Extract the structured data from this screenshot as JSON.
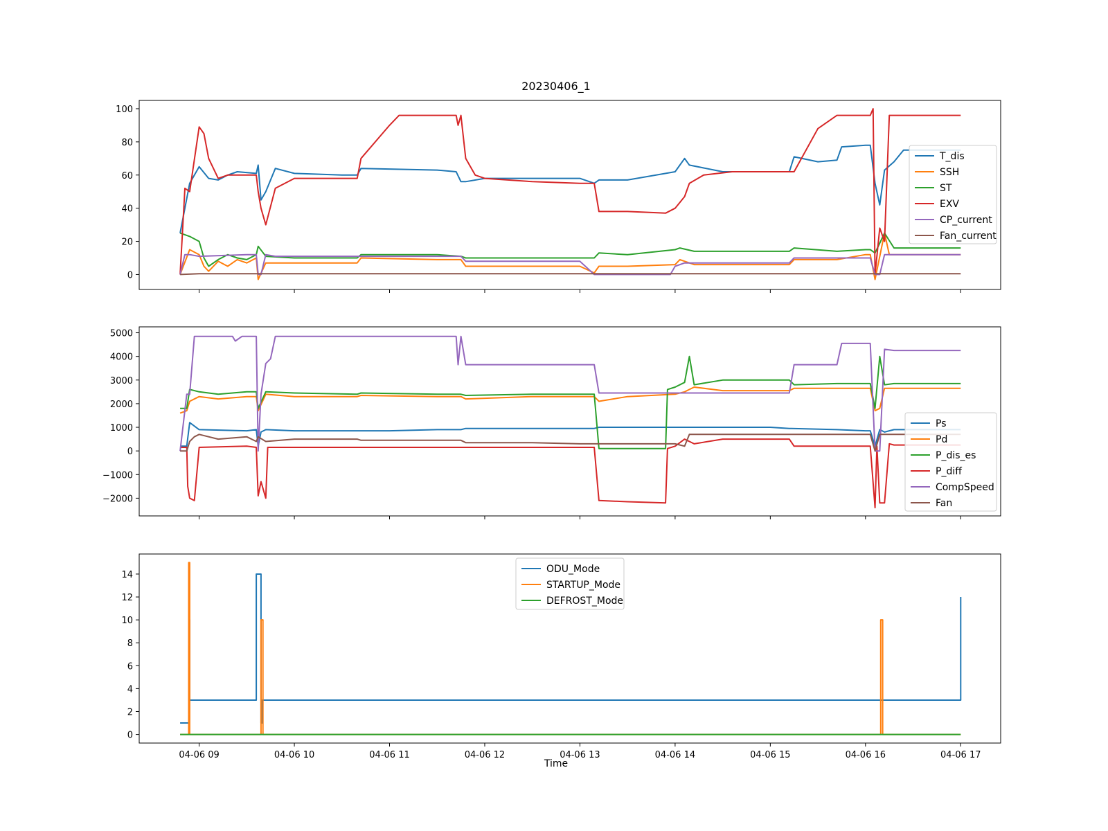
{
  "figure_title": "20230406_1",
  "xlabel": "Time",
  "x_tick_labels": [
    "04-06 09",
    "04-06 10",
    "04-06 11",
    "04-06 12",
    "04-06 13",
    "04-06 14",
    "04-06 15",
    "04-06 16",
    "04-06 17"
  ],
  "colors": {
    "blue": "#1f77b4",
    "orange": "#ff7f0e",
    "green": "#2ca02c",
    "red": "#d62728",
    "purple": "#9467bd",
    "brown": "#8c564b"
  },
  "chart_data": [
    {
      "type": "line",
      "title": "20230406_1",
      "x_unit": "hour of day on 04-06",
      "xlim": [
        8.37,
        17.42
      ],
      "ylim": [
        -9,
        105
      ],
      "yticks": [
        0,
        20,
        40,
        60,
        80,
        100
      ],
      "legend_position": "center-right",
      "series": [
        {
          "name": "T_dis",
          "color": "#1f77b4",
          "x": [
            8.8,
            8.9,
            9.0,
            9.1,
            9.2,
            9.3,
            9.4,
            9.6,
            9.62,
            9.65,
            9.7,
            9.8,
            10.0,
            10.5,
            10.66,
            10.7,
            11.5,
            11.7,
            11.75,
            11.8,
            12.0,
            12.5,
            13.0,
            13.15,
            13.2,
            13.5,
            14.0,
            14.1,
            14.15,
            14.5,
            15.0,
            15.2,
            15.25,
            15.5,
            15.7,
            15.75,
            16.0,
            16.05,
            16.1,
            16.15,
            16.2,
            16.3,
            16.4,
            17.0
          ],
          "y": [
            25,
            55,
            65,
            58,
            57,
            60,
            62,
            61,
            66,
            45,
            50,
            64,
            61,
            60,
            60,
            64,
            63,
            62,
            56,
            56,
            58,
            58,
            58,
            55,
            57,
            57,
            62,
            70,
            66,
            62,
            62,
            62,
            71,
            68,
            69,
            77,
            78,
            78,
            55,
            42,
            63,
            68,
            75,
            75
          ]
        },
        {
          "name": "SSH",
          "color": "#ff7f0e",
          "x": [
            8.8,
            8.9,
            9.0,
            9.05,
            9.1,
            9.2,
            9.3,
            9.4,
            9.5,
            9.6,
            9.62,
            9.7,
            10.0,
            10.66,
            10.7,
            11.5,
            11.75,
            11.8,
            12.5,
            13.0,
            13.15,
            13.2,
            13.5,
            14.0,
            14.05,
            14.2,
            14.5,
            15.0,
            15.2,
            15.25,
            15.7,
            16.0,
            16.05,
            16.1,
            16.2,
            16.25,
            16.3,
            17.0
          ],
          "y": [
            0,
            15,
            12,
            5,
            2,
            8,
            5,
            9,
            7,
            10,
            -3,
            7,
            7,
            7,
            10,
            9,
            9,
            5,
            5,
            5,
            1,
            5,
            5,
            6,
            9,
            6,
            6,
            6,
            6,
            9,
            9,
            12,
            12,
            -3,
            25,
            12,
            12,
            12
          ]
        },
        {
          "name": "ST",
          "color": "#2ca02c",
          "x": [
            8.8,
            8.9,
            9.0,
            9.05,
            9.1,
            9.2,
            9.3,
            9.4,
            9.5,
            9.6,
            9.62,
            9.7,
            10.0,
            10.66,
            10.7,
            11.5,
            11.75,
            11.8,
            12.5,
            13.0,
            13.15,
            13.2,
            13.5,
            14.0,
            14.05,
            14.2,
            14.5,
            15.0,
            15.2,
            15.25,
            15.7,
            16.0,
            16.05,
            16.1,
            16.2,
            16.3,
            17.0
          ],
          "y": [
            25,
            23,
            20,
            10,
            5,
            9,
            12,
            10,
            9,
            12,
            17,
            11,
            10,
            10,
            12,
            12,
            11,
            10,
            10,
            10,
            10,
            13,
            12,
            15,
            16,
            14,
            14,
            14,
            14,
            16,
            14,
            15,
            15,
            13,
            25,
            16,
            16
          ]
        },
        {
          "name": "EXV",
          "color": "#d62728",
          "x": [
            8.8,
            8.85,
            8.9,
            9.0,
            9.05,
            9.1,
            9.2,
            9.3,
            9.4,
            9.5,
            9.6,
            9.62,
            9.65,
            9.7,
            9.8,
            10.0,
            10.5,
            10.66,
            10.7,
            11.0,
            11.1,
            11.5,
            11.7,
            11.72,
            11.75,
            11.8,
            11.9,
            12.0,
            12.5,
            13.0,
            13.15,
            13.2,
            13.5,
            13.9,
            14.0,
            14.1,
            14.15,
            14.3,
            14.6,
            15.0,
            15.2,
            15.25,
            15.5,
            15.7,
            16.0,
            16.05,
            16.08,
            16.1,
            16.15,
            16.2,
            16.25,
            16.3,
            16.4,
            17.0
          ],
          "y": [
            0,
            52,
            50,
            89,
            85,
            70,
            58,
            60,
            60,
            60,
            60,
            50,
            40,
            30,
            52,
            58,
            58,
            58,
            70,
            90,
            96,
            96,
            96,
            90,
            96,
            70,
            60,
            58,
            56,
            55,
            55,
            38,
            38,
            37,
            40,
            47,
            55,
            60,
            62,
            62,
            62,
            62,
            88,
            96,
            96,
            96,
            100,
            0,
            28,
            20,
            96,
            96,
            96,
            96
          ]
        },
        {
          "name": "CP_current",
          "color": "#9467bd",
          "x": [
            8.8,
            8.85,
            8.9,
            9.0,
            9.5,
            9.6,
            9.62,
            9.65,
            9.7,
            9.8,
            10.0,
            10.5,
            11.0,
            11.5,
            11.75,
            11.8,
            12.0,
            12.5,
            13.0,
            13.15,
            13.5,
            13.95,
            14.0,
            14.1,
            14.5,
            15.0,
            15.2,
            15.25,
            15.7,
            16.0,
            16.05,
            16.1,
            16.15,
            16.2,
            16.3,
            17.0
          ],
          "y": [
            0,
            12,
            12,
            11,
            12,
            12,
            0,
            0,
            12,
            11,
            11,
            11,
            11,
            11,
            11,
            8,
            8,
            8,
            8,
            0,
            0,
            0,
            5,
            7,
            7,
            7,
            7,
            10,
            10,
            10,
            10,
            0,
            0,
            12,
            12,
            12
          ]
        },
        {
          "name": "Fan_current",
          "color": "#8c564b",
          "x": [
            8.8,
            9.0,
            9.5,
            10.0,
            11.0,
            12.0,
            13.0,
            14.0,
            15.0,
            16.0,
            17.0
          ],
          "y": [
            0,
            0.5,
            0.5,
            0.5,
            0.5,
            0.5,
            0.5,
            0.5,
            0.5,
            0.5,
            0.5
          ]
        }
      ]
    },
    {
      "type": "line",
      "title": "",
      "x_unit": "hour of day on 04-06",
      "xlim": [
        8.37,
        17.42
      ],
      "ylim": [
        -2750,
        5250
      ],
      "yticks": [
        -2000,
        -1000,
        0,
        1000,
        2000,
        3000,
        4000,
        5000
      ],
      "legend_position": "lower-right",
      "series": [
        {
          "name": "Ps",
          "color": "#1f77b4",
          "x": [
            8.8,
            8.87,
            8.9,
            9.0,
            9.5,
            9.6,
            9.62,
            9.65,
            9.7,
            10.0,
            10.5,
            11.0,
            11.5,
            11.75,
            11.8,
            12.5,
            13.0,
            13.15,
            13.2,
            13.5,
            14.0,
            14.5,
            15.0,
            15.2,
            15.7,
            16.0,
            16.05,
            16.1,
            16.15,
            16.2,
            16.3,
            17.0
          ],
          "y": [
            200,
            200,
            1200,
            900,
            850,
            900,
            200,
            800,
            900,
            850,
            850,
            850,
            900,
            900,
            950,
            950,
            950,
            950,
            1000,
            1000,
            1000,
            1000,
            1000,
            950,
            900,
            850,
            850,
            200,
            900,
            800,
            900,
            900
          ]
        },
        {
          "name": "Pd",
          "color": "#ff7f0e",
          "x": [
            8.8,
            8.87,
            8.9,
            9.0,
            9.2,
            9.5,
            9.6,
            9.62,
            9.7,
            10.0,
            10.66,
            10.7,
            11.5,
            11.75,
            11.8,
            12.5,
            13.0,
            13.15,
            13.2,
            13.5,
            14.0,
            14.1,
            14.15,
            14.2,
            14.5,
            15.0,
            15.2,
            15.25,
            15.7,
            16.0,
            16.05,
            16.1,
            16.15,
            16.2,
            16.3,
            17.0
          ],
          "y": [
            1600,
            1700,
            2100,
            2300,
            2200,
            2300,
            2300,
            1700,
            2400,
            2300,
            2300,
            2350,
            2300,
            2300,
            2200,
            2300,
            2300,
            2300,
            2100,
            2300,
            2400,
            2500,
            2600,
            2700,
            2550,
            2550,
            2550,
            2650,
            2650,
            2650,
            2650,
            1700,
            1800,
            2650,
            2650,
            2650
          ]
        },
        {
          "name": "P_dis_es",
          "color": "#2ca02c",
          "x": [
            8.8,
            8.87,
            8.9,
            9.0,
            9.2,
            9.5,
            9.6,
            9.62,
            9.7,
            10.0,
            10.66,
            10.7,
            11.5,
            11.75,
            11.8,
            12.5,
            13.0,
            13.15,
            13.2,
            13.5,
            13.9,
            13.92,
            14.0,
            14.1,
            14.15,
            14.2,
            14.5,
            15.0,
            15.2,
            15.25,
            15.7,
            16.0,
            16.05,
            16.1,
            16.15,
            16.2,
            16.3,
            17.0
          ],
          "y": [
            1800,
            1800,
            2600,
            2500,
            2400,
            2500,
            2500,
            1800,
            2500,
            2450,
            2400,
            2450,
            2400,
            2400,
            2350,
            2400,
            2400,
            2400,
            100,
            100,
            100,
            2600,
            2700,
            2900,
            4000,
            2800,
            3000,
            3000,
            3000,
            2800,
            2850,
            2850,
            2850,
            1800,
            4000,
            2800,
            2850,
            2850
          ]
        },
        {
          "name": "P_diff",
          "color": "#d62728",
          "x": [
            8.8,
            8.87,
            8.88,
            8.9,
            8.95,
            9.0,
            9.5,
            9.6,
            9.62,
            9.65,
            9.7,
            9.72,
            10.0,
            11.0,
            12.0,
            13.0,
            13.15,
            13.2,
            13.5,
            13.9,
            13.92,
            14.0,
            14.1,
            14.2,
            14.5,
            15.0,
            15.2,
            15.25,
            15.7,
            16.0,
            16.05,
            16.1,
            16.12,
            16.15,
            16.2,
            16.25,
            16.3,
            17.0
          ],
          "y": [
            150,
            150,
            -1500,
            -2000,
            -2100,
            150,
            200,
            150,
            -1900,
            -1300,
            -2000,
            150,
            150,
            150,
            150,
            150,
            150,
            -2100,
            -2150,
            -2200,
            100,
            200,
            500,
            300,
            500,
            500,
            500,
            200,
            200,
            200,
            200,
            -2400,
            200,
            -2200,
            -2200,
            300,
            250,
            250
          ]
        },
        {
          "name": "CompSpeed",
          "color": "#9467bd",
          "x": [
            8.8,
            8.87,
            8.9,
            8.95,
            9.35,
            9.38,
            9.45,
            9.6,
            9.62,
            9.65,
            9.7,
            9.75,
            9.8,
            10.0,
            10.5,
            11.0,
            11.5,
            11.7,
            11.72,
            11.75,
            11.8,
            12.0,
            12.5,
            13.0,
            13.15,
            13.2,
            13.5,
            14.0,
            14.5,
            15.0,
            15.2,
            15.25,
            15.7,
            15.75,
            16.0,
            16.05,
            16.1,
            16.15,
            16.2,
            16.3,
            17.0
          ],
          "y": [
            0,
            2400,
            2400,
            4850,
            4850,
            4650,
            4850,
            4850,
            0,
            2400,
            3700,
            3900,
            4850,
            4850,
            4850,
            4850,
            4850,
            4850,
            3650,
            4850,
            3650,
            3650,
            3650,
            3650,
            3650,
            2450,
            2450,
            2450,
            2450,
            2450,
            2450,
            3650,
            3650,
            4550,
            4550,
            4550,
            0,
            0,
            4300,
            4250,
            4250
          ]
        },
        {
          "name": "Fan",
          "color": "#8c564b",
          "x": [
            8.8,
            8.87,
            8.9,
            8.95,
            9.0,
            9.2,
            9.5,
            9.6,
            9.62,
            9.7,
            10.0,
            10.66,
            10.7,
            11.0,
            11.5,
            11.75,
            11.8,
            12.5,
            13.0,
            13.15,
            13.2,
            13.5,
            14.0,
            14.1,
            14.15,
            14.2,
            14.5,
            15.0,
            15.2,
            15.7,
            16.0,
            16.05,
            16.1,
            16.15,
            16.2,
            16.3,
            17.0
          ],
          "y": [
            0,
            0,
            400,
            600,
            700,
            500,
            600,
            400,
            600,
            400,
            500,
            500,
            450,
            450,
            450,
            450,
            350,
            350,
            300,
            300,
            300,
            300,
            300,
            200,
            700,
            700,
            700,
            700,
            700,
            700,
            700,
            700,
            0,
            700,
            700,
            700,
            700
          ]
        }
      ]
    },
    {
      "type": "line",
      "title": "",
      "x_unit": "hour of day on 04-06",
      "xlim": [
        8.37,
        17.42
      ],
      "ylim": [
        -0.75,
        15.75
      ],
      "yticks": [
        0,
        2,
        4,
        6,
        8,
        10,
        12,
        14
      ],
      "legend_position": "upper-center",
      "series": [
        {
          "name": "ODU_Mode",
          "color": "#1f77b4",
          "x": [
            8.8,
            8.89,
            8.89,
            8.9,
            8.9,
            9.6,
            9.6,
            9.65,
            9.65,
            9.66,
            9.66,
            17.0,
            17.0
          ],
          "y": [
            1,
            1,
            10,
            10,
            3,
            3,
            14,
            14,
            1,
            1,
            3,
            3,
            12
          ]
        },
        {
          "name": "STARTUP_Mode",
          "color": "#ff7f0e",
          "x": [
            8.8,
            8.89,
            8.89,
            8.9,
            8.9,
            9.65,
            9.65,
            9.67,
            9.67,
            16.16,
            16.16,
            16.18,
            16.18,
            17.0
          ],
          "y": [
            0,
            0,
            15,
            15,
            0,
            0,
            10,
            10,
            0,
            0,
            10,
            10,
            0,
            0
          ]
        },
        {
          "name": "DEFROST_Mode",
          "color": "#2ca02c",
          "x": [
            8.8,
            17.0
          ],
          "y": [
            0,
            0
          ]
        }
      ]
    }
  ]
}
